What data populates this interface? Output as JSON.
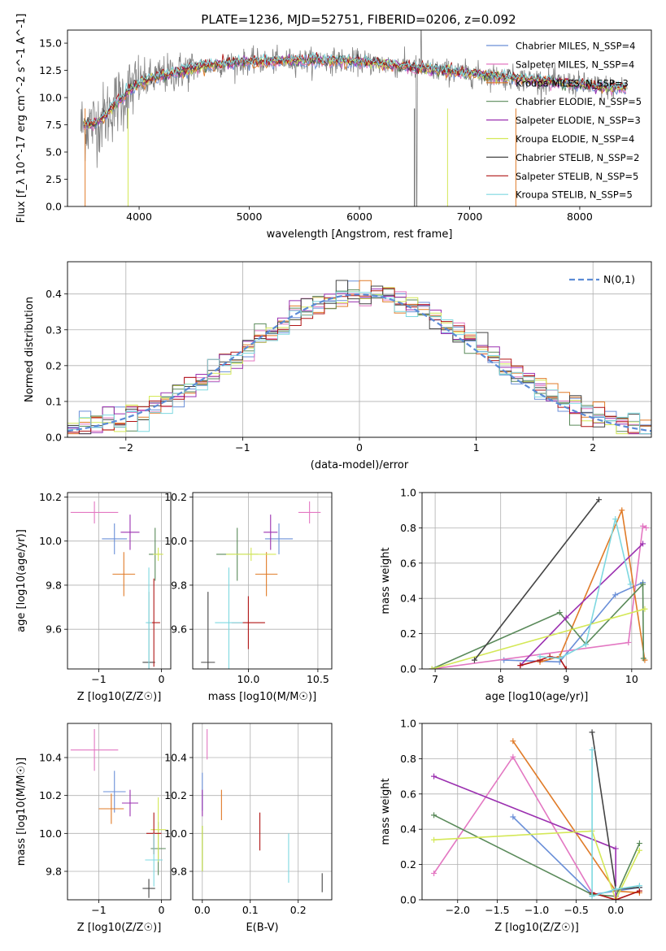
{
  "title": "PLATE=1236, MJD=52751, FIBERID=0206, z=0.092",
  "chart_data": [
    {
      "type": "line",
      "name": "spectrum",
      "xlabel": "wavelength [Angstrom, rest frame]",
      "ylabel": "Flux [f_λ 10^-17 erg cm^-2 s^-1 A^-1]",
      "xlim": [
        3350,
        8650
      ],
      "ylim": [
        0,
        16.2
      ],
      "xticks": [
        4000,
        5000,
        6000,
        7000,
        8000
      ],
      "yticks": [
        0.0,
        2.5,
        5.0,
        7.5,
        10.0,
        12.5,
        15.0
      ],
      "grid": false,
      "legend_position": "top-right",
      "legend": [
        {
          "label": "Chabrier MILES, N_SSP=4",
          "color": "#6a8fd8"
        },
        {
          "label": "Salpeter MILES, N_SSP=4",
          "color": "#e377c2"
        },
        {
          "label": "Kroupa MILES, N_SSP=3",
          "color": "#e07b28"
        },
        {
          "label": "Chabrier ELODIE, N_SSP=5",
          "color": "#5a8a5a"
        },
        {
          "label": "Salpeter ELODIE, N_SSP=3",
          "color": "#9b30b0"
        },
        {
          "label": "Kroupa ELODIE, N_SSP=4",
          "color": "#d4e857"
        },
        {
          "label": "Chabrier STELIB, N_SSP=2",
          "color": "#444444"
        },
        {
          "label": "Salpeter STELIB, N_SSP=5",
          "color": "#b01515"
        },
        {
          "label": "Kroupa STELIB, N_SSP=5",
          "color": "#7ed8e0"
        }
      ],
      "data_color": "#808080",
      "continuum": [
        [
          3470,
          7.4
        ],
        [
          3600,
          7.6
        ],
        [
          3700,
          8.4
        ],
        [
          3800,
          9.6
        ],
        [
          3900,
          10.5
        ],
        [
          4000,
          11.3
        ],
        [
          4200,
          12.0
        ],
        [
          4400,
          12.5
        ],
        [
          4600,
          12.9
        ],
        [
          4800,
          13.1
        ],
        [
          5000,
          13.3
        ],
        [
          5200,
          13.3
        ],
        [
          5400,
          13.4
        ],
        [
          5600,
          13.4
        ],
        [
          5800,
          13.4
        ],
        [
          6000,
          13.3
        ],
        [
          6200,
          13.1
        ],
        [
          6400,
          12.9
        ],
        [
          6600,
          12.6
        ],
        [
          6800,
          12.4
        ],
        [
          7000,
          12.2
        ],
        [
          7200,
          12.0
        ],
        [
          7400,
          11.8
        ],
        [
          7600,
          11.6
        ],
        [
          7800,
          11.4
        ],
        [
          8000,
          11.2
        ],
        [
          8200,
          11.0
        ],
        [
          8430,
          10.9
        ]
      ]
    },
    {
      "type": "bar",
      "name": "residual_histogram",
      "xlabel": "(data-model)/error",
      "ylabel": "Normed distribution",
      "xlim": [
        -2.5,
        2.5
      ],
      "ylim": [
        0,
        0.49
      ],
      "xticks": [
        -2,
        -1,
        0,
        1,
        2
      ],
      "yticks": [
        0.0,
        0.1,
        0.2,
        0.3,
        0.4
      ],
      "grid": true,
      "legend_position": "top-right",
      "legend": [
        {
          "label": "N(0,1)",
          "color": "#5b8bd6",
          "style": "dashed"
        }
      ],
      "bin_width": 0.1
    },
    {
      "type": "scatter",
      "name": "age_vs_Z",
      "xlabel": "Z [log10(Z/Z☉)]",
      "ylabel": "age [log10(age/yr)]",
      "xlim": [
        -1.5,
        0.15
      ],
      "ylim": [
        9.42,
        10.22
      ],
      "xticks": [
        -1,
        0
      ],
      "yticks": [
        9.6,
        9.8,
        10.0,
        10.2
      ],
      "grid": true,
      "points": [
        {
          "series": "Chabrier MILES",
          "x": -0.75,
          "y": 10.01,
          "ex": 0.2,
          "ey": 0.07,
          "color": "#6a8fd8"
        },
        {
          "series": "Salpeter MILES",
          "x": -1.07,
          "y": 10.13,
          "ex": 0.38,
          "ey": 0.05,
          "color": "#e377c2"
        },
        {
          "series": "Kroupa MILES",
          "x": -0.6,
          "y": 9.85,
          "ex": 0.18,
          "ey": 0.1,
          "color": "#e07b28"
        },
        {
          "series": "Chabrier ELODIE",
          "x": -0.1,
          "y": 9.94,
          "ex": 0.1,
          "ey": 0.12,
          "color": "#5a8a5a"
        },
        {
          "series": "Salpeter ELODIE",
          "x": -0.5,
          "y": 10.04,
          "ex": 0.15,
          "ey": 0.08,
          "color": "#9b30b0"
        },
        {
          "series": "Kroupa ELODIE",
          "x": -0.05,
          "y": 9.94,
          "ex": 0.08,
          "ey": 0.03,
          "color": "#d4e857"
        },
        {
          "series": "Chabrier STELIB",
          "x": -0.2,
          "y": 9.45,
          "ex": 0.1,
          "ey": 0.32,
          "color": "#444444"
        },
        {
          "series": "Salpeter STELIB",
          "x": -0.12,
          "y": 9.63,
          "ex": 0.1,
          "ey": 0.2,
          "color": "#b01515"
        },
        {
          "series": "Kroupa STELIB",
          "x": -0.2,
          "y": 9.63,
          "ex": 0.05,
          "ey": 0.25,
          "color": "#7ed8e0"
        }
      ]
    },
    {
      "type": "scatter",
      "name": "age_vs_mass",
      "xlabel": "mass [log10(M/M☉)]",
      "ylabel": "",
      "xlim": [
        9.6,
        10.6
      ],
      "ylim": [
        9.42,
        10.22
      ],
      "xticks": [
        10.0,
        10.5
      ],
      "yticks": [
        9.6,
        9.8,
        10.0,
        10.2
      ],
      "grid": true,
      "points": [
        {
          "series": "Chabrier MILES",
          "x": 10.22,
          "y": 10.01,
          "ex": 0.1,
          "ey": 0.07,
          "color": "#6a8fd8"
        },
        {
          "series": "Salpeter MILES",
          "x": 10.44,
          "y": 10.13,
          "ex": 0.08,
          "ey": 0.05,
          "color": "#e377c2"
        },
        {
          "series": "Kroupa MILES",
          "x": 10.13,
          "y": 9.85,
          "ex": 0.08,
          "ey": 0.1,
          "color": "#e07b28"
        },
        {
          "series": "Chabrier ELODIE",
          "x": 9.92,
          "y": 9.94,
          "ex": 0.15,
          "ey": 0.12,
          "color": "#5a8a5a"
        },
        {
          "series": "Salpeter ELODIE",
          "x": 10.16,
          "y": 10.04,
          "ex": 0.05,
          "ey": 0.08,
          "color": "#9b30b0"
        },
        {
          "series": "Kroupa ELODIE",
          "x": 10.02,
          "y": 9.94,
          "ex": 0.18,
          "ey": 0.03,
          "color": "#d4e857"
        },
        {
          "series": "Chabrier STELIB",
          "x": 9.71,
          "y": 9.45,
          "ex": 0.05,
          "ey": 0.32,
          "color": "#444444"
        },
        {
          "series": "Salpeter STELIB",
          "x": 10.0,
          "y": 9.63,
          "ex": 0.12,
          "ey": 0.12,
          "color": "#b01515"
        },
        {
          "series": "Kroupa STELIB",
          "x": 9.86,
          "y": 9.63,
          "ex": 0.1,
          "ey": 0.25,
          "color": "#7ed8e0"
        }
      ]
    },
    {
      "type": "line",
      "name": "mass_weight_vs_age",
      "xlabel": "age [log10(age/yr)]",
      "ylabel": "mass weight",
      "xlim": [
        6.8,
        10.3
      ],
      "ylim": [
        0,
        1.0
      ],
      "xticks": [
        7,
        8,
        9,
        10
      ],
      "yticks": [
        0.0,
        0.2,
        0.4,
        0.6,
        0.8,
        1.0
      ],
      "grid": true,
      "series": [
        {
          "name": "Chabrier MILES",
          "color": "#6a8fd8",
          "x": [
            8.05,
            8.9,
            9.75,
            10.17
          ],
          "y": [
            0.05,
            0.04,
            0.42,
            0.49
          ]
        },
        {
          "name": "Salpeter MILES",
          "color": "#e377c2",
          "x": [
            6.95,
            9.95,
            10.17,
            10.22
          ],
          "y": [
            0.0,
            0.15,
            0.81,
            0.8
          ]
        },
        {
          "name": "Kroupa MILES",
          "color": "#e07b28",
          "x": [
            8.6,
            8.9,
            9.85,
            10.2
          ],
          "y": [
            0.04,
            0.07,
            0.9,
            0.05
          ]
        },
        {
          "name": "Chabrier ELODIE",
          "color": "#5a8a5a",
          "x": [
            6.95,
            8.9,
            9.3,
            10.17,
            10.18
          ],
          "y": [
            0.0,
            0.32,
            0.14,
            0.48,
            0.06
          ]
        },
        {
          "name": "Salpeter ELODIE",
          "color": "#9b30b0",
          "x": [
            8.3,
            9.0,
            10.17
          ],
          "y": [
            0.02,
            0.29,
            0.71
          ]
        },
        {
          "name": "Kroupa ELODIE",
          "color": "#d4e857",
          "x": [
            6.95,
            10.2
          ],
          "y": [
            0.0,
            0.34
          ]
        },
        {
          "name": "Chabrier STELIB",
          "color": "#444444",
          "x": [
            7.6,
            9.5
          ],
          "y": [
            0.05,
            0.96
          ]
        },
        {
          "name": "Salpeter STELIB",
          "color": "#b01515",
          "x": [
            8.3,
            8.6,
            8.75,
            8.9,
            9.0
          ],
          "y": [
            0.02,
            0.05,
            0.07,
            0.06,
            0.0
          ]
        },
        {
          "name": "Kroupa STELIB",
          "color": "#7ed8e0",
          "x": [
            8.6,
            8.9,
            9.3,
            9.75,
            9.98
          ],
          "y": [
            0.07,
            0.06,
            0.14,
            0.85,
            0.48
          ]
        }
      ]
    },
    {
      "type": "scatter",
      "name": "mass_vs_Z",
      "xlabel": "Z [log10(Z/Z☉)]",
      "ylabel": "mass [log10(M/M☉)]",
      "xlim": [
        -1.5,
        0.15
      ],
      "ylim": [
        9.65,
        10.58
      ],
      "xticks": [
        -1,
        0
      ],
      "yticks": [
        9.8,
        10.0,
        10.2,
        10.4
      ],
      "grid": true,
      "points": [
        {
          "series": "Chabrier MILES",
          "x": -0.75,
          "y": 10.22,
          "ex": 0.18,
          "ey": 0.11,
          "color": "#6a8fd8"
        },
        {
          "series": "Salpeter MILES",
          "x": -1.07,
          "y": 10.44,
          "ex": 0.38,
          "ey": 0.11,
          "color": "#e377c2"
        },
        {
          "series": "Kroupa MILES",
          "x": -0.8,
          "y": 10.13,
          "ex": 0.2,
          "ey": 0.08,
          "color": "#e07b28"
        },
        {
          "series": "Chabrier ELODIE",
          "x": -0.05,
          "y": 9.92,
          "ex": 0.12,
          "ey": 0.14,
          "color": "#5a8a5a"
        },
        {
          "series": "Salpeter ELODIE",
          "x": -0.5,
          "y": 10.16,
          "ex": 0.13,
          "ey": 0.07,
          "color": "#9b30b0"
        },
        {
          "series": "Kroupa ELODIE",
          "x": -0.05,
          "y": 10.02,
          "ex": 0.12,
          "ey": 0.17,
          "color": "#d4e857"
        },
        {
          "series": "Chabrier STELIB",
          "x": -0.2,
          "y": 9.71,
          "ex": 0.1,
          "ey": 0.05,
          "color": "#444444"
        },
        {
          "series": "Salpeter STELIB",
          "x": -0.12,
          "y": 10.0,
          "ex": 0.12,
          "ey": 0.11,
          "color": "#b01515"
        },
        {
          "series": "Kroupa STELIB",
          "x": -0.12,
          "y": 9.86,
          "ex": 0.14,
          "ey": 0.14,
          "color": "#7ed8e0"
        }
      ]
    },
    {
      "type": "scatter",
      "name": "mass_vs_EBV",
      "xlabel": "E(B-V)",
      "ylabel": "",
      "xlim": [
        -0.02,
        0.27
      ],
      "ylim": [
        9.65,
        10.58
      ],
      "xticks": [
        0.0,
        0.1,
        0.2
      ],
      "yticks": [
        9.8,
        10.0,
        10.2,
        10.4
      ],
      "grid": true,
      "points": [
        {
          "series": "Chabrier MILES",
          "x": 0.0,
          "y": 10.22,
          "ey": 0.1,
          "color": "#6a8fd8"
        },
        {
          "series": "Salpeter MILES",
          "x": 0.01,
          "y": 10.47,
          "ey": 0.08,
          "color": "#e377c2"
        },
        {
          "series": "Kroupa MILES",
          "x": 0.04,
          "y": 10.15,
          "ey": 0.08,
          "color": "#e07b28"
        },
        {
          "series": "Chabrier ELODIE",
          "x": 0.0,
          "y": 9.92,
          "ey": 0.12,
          "color": "#5a8a5a"
        },
        {
          "series": "Salpeter ELODIE",
          "x": 0.0,
          "y": 10.16,
          "ey": 0.07,
          "color": "#9b30b0"
        },
        {
          "series": "Kroupa ELODIE",
          "x": 0.0,
          "y": 9.92,
          "ey": 0.12,
          "color": "#d4e857"
        },
        {
          "series": "Chabrier STELIB",
          "x": 0.25,
          "y": 9.74,
          "ey": 0.05,
          "color": "#444444"
        },
        {
          "series": "Salpeter STELIB",
          "x": 0.12,
          "y": 10.01,
          "ey": 0.1,
          "color": "#b01515"
        },
        {
          "series": "Kroupa STELIB",
          "x": 0.18,
          "y": 9.87,
          "ey": 0.13,
          "color": "#7ed8e0"
        }
      ]
    },
    {
      "type": "line",
      "name": "mass_weight_vs_Z",
      "xlabel": "Z [log10(Z/Z☉)]",
      "ylabel": "mass weight",
      "xlim": [
        -2.45,
        0.45
      ],
      "ylim": [
        0,
        1.0
      ],
      "xticks": [
        -2.0,
        -1.5,
        -1.0,
        -0.5,
        0.0
      ],
      "yticks": [
        0.0,
        0.2,
        0.4,
        0.6,
        0.8,
        1.0
      ],
      "grid": true,
      "series": [
        {
          "name": "Chabrier MILES",
          "color": "#6a8fd8",
          "x": [
            -1.3,
            -0.3,
            0.3
          ],
          "y": [
            0.47,
            0.03,
            0.07
          ]
        },
        {
          "name": "Salpeter MILES",
          "color": "#e377c2",
          "x": [
            -2.3,
            -1.3,
            -0.3
          ],
          "y": [
            0.15,
            0.81,
            0.04
          ]
        },
        {
          "name": "Kroupa MILES",
          "color": "#e07b28",
          "x": [
            -1.3,
            0.0,
            0.3
          ],
          "y": [
            0.9,
            0.05,
            0.04
          ]
        },
        {
          "name": "Chabrier ELODIE",
          "color": "#5a8a5a",
          "x": [
            -2.3,
            -0.3,
            0.0,
            0.3
          ],
          "y": [
            0.48,
            0.03,
            0.02,
            0.32
          ]
        },
        {
          "name": "Salpeter ELODIE",
          "color": "#9b30b0",
          "x": [
            -2.3,
            0.0,
            0.0
          ],
          "y": [
            0.7,
            0.29,
            0.02
          ]
        },
        {
          "name": "Kroupa ELODIE",
          "color": "#d4e857",
          "x": [
            -2.3,
            -0.3,
            0.0,
            0.3
          ],
          "y": [
            0.34,
            0.39,
            0.0,
            0.28
          ]
        },
        {
          "name": "Chabrier STELIB",
          "color": "#444444",
          "x": [
            -0.3,
            0.0,
            0.3
          ],
          "y": [
            0.95,
            0.06,
            0.07
          ]
        },
        {
          "name": "Salpeter STELIB",
          "color": "#b01515",
          "x": [
            -0.3,
            0.0,
            0.3
          ],
          "y": [
            0.04,
            0.0,
            0.05
          ]
        },
        {
          "name": "Kroupa STELIB",
          "color": "#7ed8e0",
          "x": [
            -0.3,
            -0.3,
            0.0,
            0.3
          ],
          "y": [
            0.85,
            0.02,
            0.06,
            0.08
          ]
        }
      ]
    }
  ]
}
